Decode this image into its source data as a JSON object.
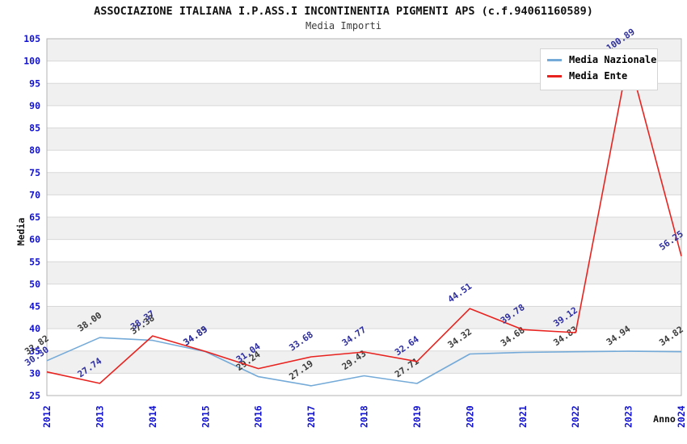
{
  "header": {
    "title": "ASSOCIAZIONE ITALIANA I.P.ASS.I INCONTINENTIA PIGMENTI APS (c.f.94061160589)",
    "subtitle": "Media Importi"
  },
  "colors": {
    "tick_label": "#1212d0",
    "band_gray": "#f0f0f0",
    "gridline": "#d8d8d8",
    "plot_border": "#b3b3b3",
    "background": "#ffffff"
  },
  "chart_data": {
    "type": "line",
    "x": [
      "2012",
      "2013",
      "2014",
      "2015",
      "2016",
      "2017",
      "2018",
      "2019",
      "2020",
      "2021",
      "2022",
      "2023",
      "2024"
    ],
    "xlabel": "Anno",
    "ylabel": "Media",
    "ylim": [
      25,
      105
    ],
    "ytick_step": 5,
    "grid": "horizontal-bands-alternating",
    "legend_position": "top-right",
    "series": [
      {
        "name": "Media Nazionale",
        "color": "#74aad8",
        "label_color": "#3a3a3a",
        "values": [
          32.82,
          38.0,
          37.38,
          34.85,
          29.24,
          27.19,
          29.43,
          27.71,
          34.32,
          34.68,
          34.83,
          34.94,
          34.82
        ]
      },
      {
        "name": "Media Ente",
        "color": "#e8231f",
        "label_color": "#2e2e9e",
        "values": [
          30.3,
          27.74,
          38.37,
          34.89,
          31.04,
          33.68,
          34.77,
          32.64,
          44.51,
          39.78,
          39.12,
          100.89,
          56.25
        ]
      }
    ]
  }
}
